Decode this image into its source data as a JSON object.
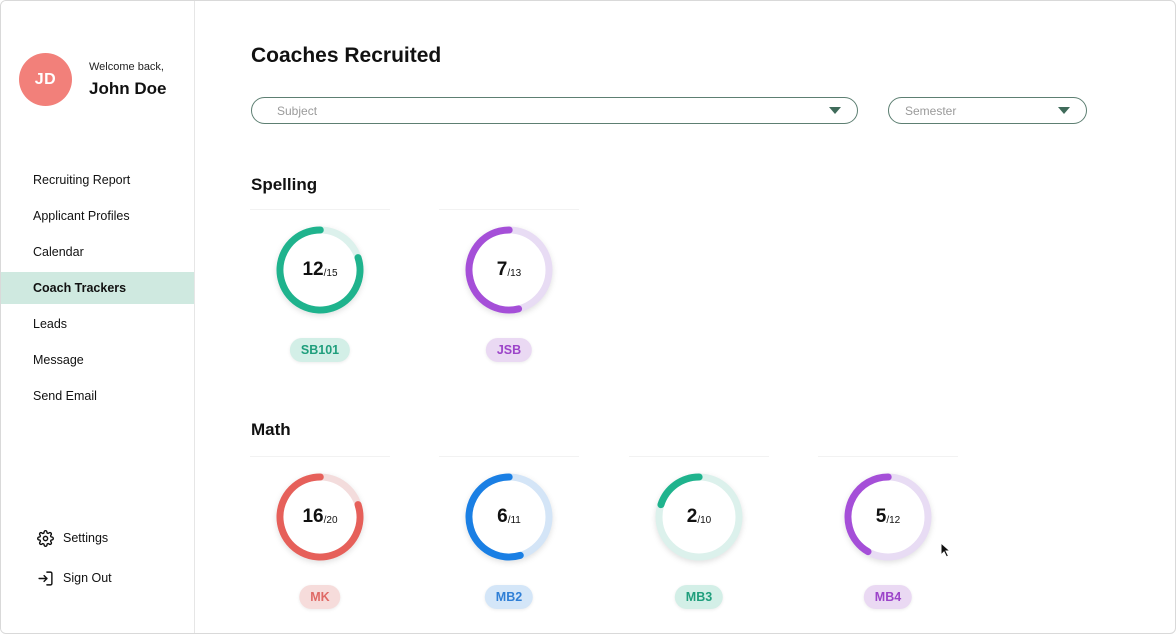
{
  "user": {
    "initials": "JD",
    "welcome": "Welcome back,",
    "name": "John Doe"
  },
  "sidebar": {
    "items": [
      {
        "label": "Recruiting Report"
      },
      {
        "label": "Applicant Profiles"
      },
      {
        "label": "Calendar"
      },
      {
        "label": "Coach Trackers"
      },
      {
        "label": "Leads"
      },
      {
        "label": "Message"
      },
      {
        "label": "Send Email"
      }
    ],
    "active_index": 3,
    "settings_label": "Settings",
    "signout_label": "Sign Out",
    "settings_icon": "gear-icon",
    "signout_icon": "sign-out-icon"
  },
  "main": {
    "title": "Coaches Recruited",
    "subject_placeholder": "Subject",
    "semester_placeholder": "Semester"
  },
  "sections": [
    {
      "title": "Spelling",
      "trackers": [
        {
          "code": "SB101",
          "value": 12,
          "total": 15,
          "color": "#1fb38d",
          "track": "#dcf1ec",
          "tag_bg": "#d3efe7",
          "tag_fg": "#1f9e7c"
        },
        {
          "code": "JSB",
          "value": 7,
          "total": 13,
          "color": "#a54fd8",
          "track": "#e8dcf4",
          "tag_bg": "#ead9f3",
          "tag_fg": "#9c44c9"
        }
      ]
    },
    {
      "title": "Math",
      "trackers": [
        {
          "code": "MK",
          "value": 16,
          "total": 20,
          "color": "#e6605a",
          "track": "#f3dcdc",
          "tag_bg": "#f6dcdb",
          "tag_fg": "#df6a66"
        },
        {
          "code": "MB2",
          "value": 6,
          "total": 11,
          "color": "#1a7fe4",
          "track": "#d4e5f7",
          "tag_bg": "#d4e6f8",
          "tag_fg": "#2f7fd6"
        },
        {
          "code": "MB3",
          "value": 2,
          "total": 10,
          "color": "#1fb38d",
          "track": "#dcf1ec",
          "tag_bg": "#d3efe7",
          "tag_fg": "#1f9e7c"
        },
        {
          "code": "MB4",
          "value": 5,
          "total": 12,
          "color": "#a54fd8",
          "track": "#e8dcf4",
          "tag_bg": "#ead9f3",
          "tag_fg": "#9c44c9"
        }
      ]
    }
  ]
}
